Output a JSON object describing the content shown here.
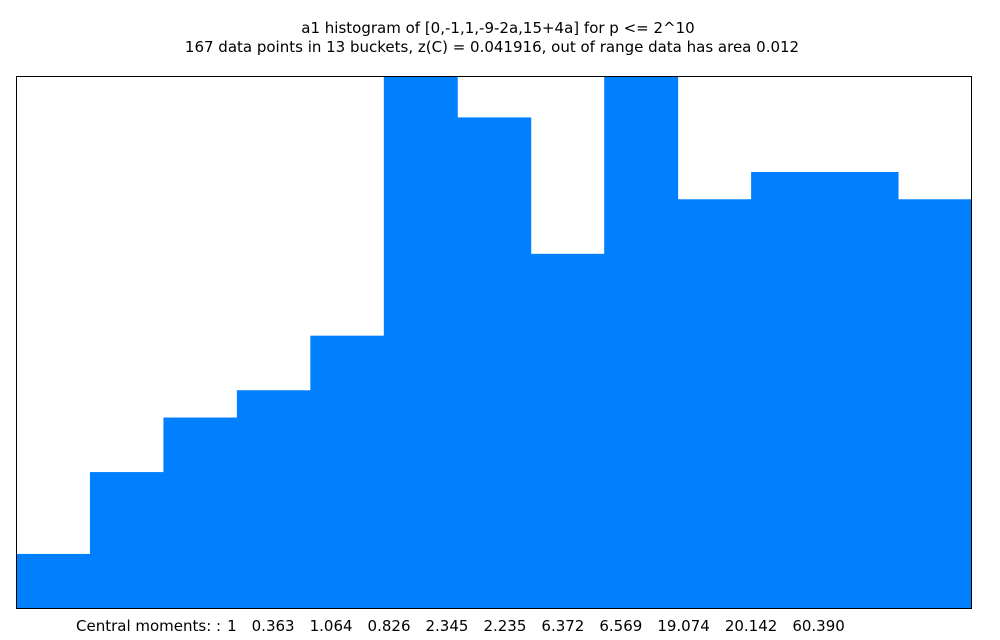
{
  "chart_data": {
    "type": "histogram",
    "title": "a1 histogram of [0,-1,1,-9-2a,15+4a] for p <= 2^10",
    "subtitle": "167 data points in 13 buckets, z(C) = 0.041916, out of range data has area 0.012",
    "values": [
      4,
      10,
      14,
      16,
      20,
      39,
      36,
      26,
      39,
      30,
      32,
      32,
      30
    ],
    "color": "#0080ff",
    "footer_label": "Central moments: :",
    "moments": [
      "1",
      "0.363",
      "1.064",
      "0.826",
      "2.345",
      "2.235",
      "6.372",
      "6.569",
      "19.074",
      "20.142",
      "60.390"
    ]
  }
}
